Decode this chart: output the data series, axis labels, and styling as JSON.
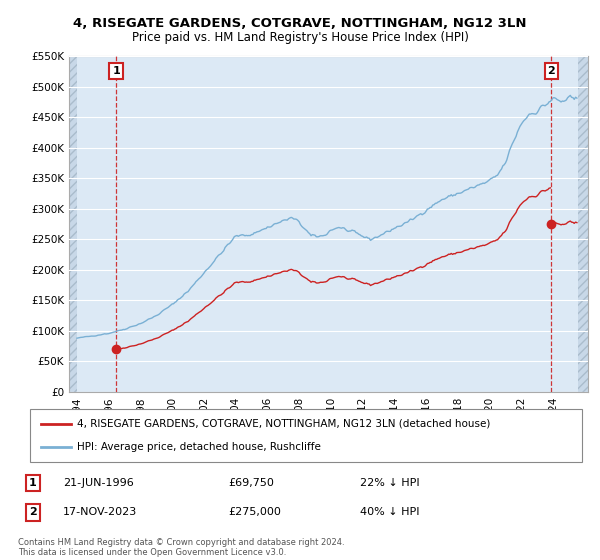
{
  "title": "4, RISEGATE GARDENS, COTGRAVE, NOTTINGHAM, NG12 3LN",
  "subtitle": "Price paid vs. HM Land Registry's House Price Index (HPI)",
  "legend_line1": "4, RISEGATE GARDENS, COTGRAVE, NOTTINGHAM, NG12 3LN (detached house)",
  "legend_line2": "HPI: Average price, detached house, Rushcliffe",
  "annotation1_date": "21-JUN-1996",
  "annotation1_price": "£69,750",
  "annotation1_hpi": "22% ↓ HPI",
  "annotation2_date": "17-NOV-2023",
  "annotation2_price": "£275,000",
  "annotation2_hpi": "40% ↓ HPI",
  "copyright": "Contains HM Land Registry data © Crown copyright and database right 2024.\nThis data is licensed under the Open Government Licence v3.0.",
  "sale1_year": 1996.47,
  "sale1_price": 69750,
  "sale2_year": 2023.88,
  "sale2_price": 275000,
  "hpi_color": "#7ab0d4",
  "sale_color": "#cc2222",
  "vline_color": "#cc2222",
  "background_color": "#ffffff",
  "plot_bg_color": "#dce9f5",
  "ylim": [
    0,
    550000
  ],
  "xlim_start": 1993.5,
  "xlim_end": 2026.2
}
